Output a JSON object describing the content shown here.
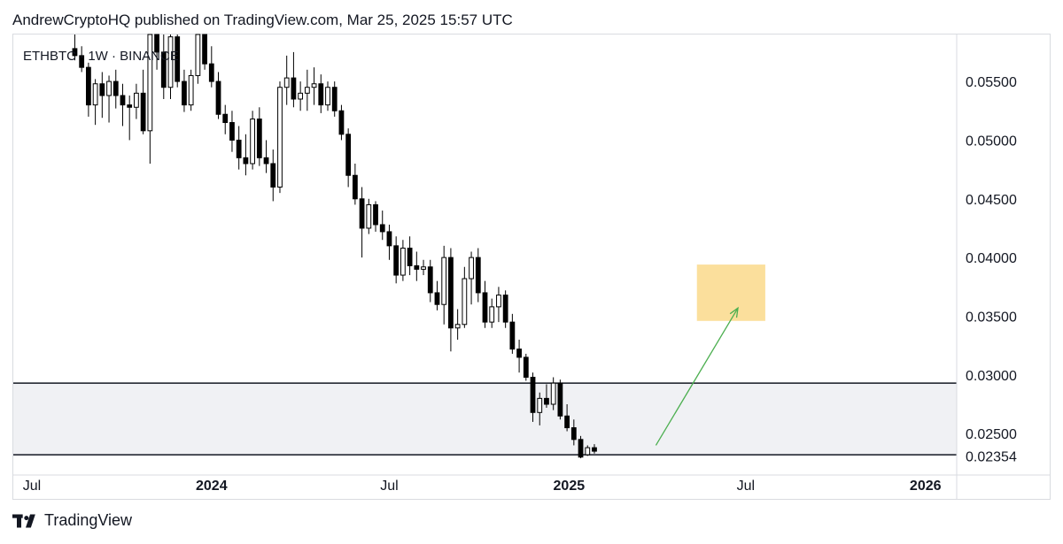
{
  "header": {
    "text": "AndrewCryptoHQ published on TradingView.com, Mar 25, 2025 15:57 UTC"
  },
  "symbol": {
    "text": "ETHBTC · 1W · BINANCE"
  },
  "footer": {
    "brand": "TradingView",
    "logo_icon": "tradingview-logo-icon"
  },
  "colors": {
    "candle_up_fill": "#ffffff",
    "candle_down_fill": "#000000",
    "candle_outline": "#000000",
    "support_zone": "#f0f1f4",
    "target_box": "#fbdf9c",
    "arrow": "#4caf50",
    "grid_border": "#d9dbe0"
  },
  "chart_data": {
    "type": "candlestick",
    "title": "",
    "interval": "1W",
    "exchange": "BINANCE",
    "symbol": "ETHBTC",
    "y_axis": {
      "side": "right",
      "ticks": [
        "0.05500",
        "0.05000",
        "0.04500",
        "0.04000",
        "0.03500",
        "0.03000",
        "0.02500"
      ],
      "last_price_label": "0.02354",
      "range": [
        0.022,
        0.059
      ]
    },
    "x_axis": {
      "ticks": [
        "Jul",
        "2024",
        "Jul",
        "2025",
        "Jul",
        "2026"
      ],
      "range": [
        "2023-06-12",
        "2026-02-02"
      ]
    },
    "support_zone": {
      "low": 0.0232,
      "high": 0.0293
    },
    "target_zone": {
      "low": 0.0346,
      "high": 0.0394,
      "start": "2025-05-12",
      "end": "2025-07-21"
    },
    "projection_arrow": {
      "from": {
        "date": "2025-03-31",
        "price": 0.024
      },
      "to": {
        "date": "2025-06-23",
        "price": 0.0357
      }
    },
    "series_start": "2023-08-14",
    "candles": [
      [
        0.0578,
        0.0592,
        0.0568,
        0.0572
      ],
      [
        0.0572,
        0.058,
        0.0558,
        0.0562
      ],
      [
        0.0562,
        0.0566,
        0.052,
        0.053
      ],
      [
        0.053,
        0.0552,
        0.0513,
        0.0548
      ],
      [
        0.0548,
        0.0558,
        0.0519,
        0.0538
      ],
      [
        0.0538,
        0.0555,
        0.0515,
        0.055
      ],
      [
        0.055,
        0.056,
        0.0527,
        0.0538
      ],
      [
        0.0538,
        0.0548,
        0.0512,
        0.053
      ],
      [
        0.053,
        0.0538,
        0.05,
        0.0528
      ],
      [
        0.0528,
        0.0548,
        0.0518,
        0.054
      ],
      [
        0.054,
        0.056,
        0.0505,
        0.0508
      ],
      [
        0.0508,
        0.0601,
        0.048,
        0.059
      ],
      [
        0.059,
        0.0605,
        0.056,
        0.0575
      ],
      [
        0.0575,
        0.0602,
        0.0535,
        0.0545
      ],
      [
        0.0545,
        0.0595,
        0.0535,
        0.0588
      ],
      [
        0.0588,
        0.0598,
        0.0545,
        0.055
      ],
      [
        0.055,
        0.056,
        0.0524,
        0.053
      ],
      [
        0.053,
        0.056,
        0.0525,
        0.0555
      ],
      [
        0.0555,
        0.0605,
        0.0548,
        0.0595
      ],
      [
        0.0595,
        0.0608,
        0.056,
        0.0565
      ],
      [
        0.0565,
        0.058,
        0.0545,
        0.055
      ],
      [
        0.055,
        0.0558,
        0.0518,
        0.0522
      ],
      [
        0.0522,
        0.053,
        0.0505,
        0.0515
      ],
      [
        0.0515,
        0.0525,
        0.049,
        0.05
      ],
      [
        0.05,
        0.0512,
        0.0475,
        0.0485
      ],
      [
        0.0485,
        0.0505,
        0.047,
        0.048
      ],
      [
        0.048,
        0.0525,
        0.0475,
        0.0518
      ],
      [
        0.0518,
        0.0528,
        0.0478,
        0.0485
      ],
      [
        0.0485,
        0.05,
        0.0472,
        0.048
      ],
      [
        0.048,
        0.0492,
        0.0448,
        0.046
      ],
      [
        0.046,
        0.055,
        0.0455,
        0.0545
      ],
      [
        0.0545,
        0.0572,
        0.053,
        0.0553
      ],
      [
        0.0553,
        0.0575,
        0.0528,
        0.0535
      ],
      [
        0.0535,
        0.055,
        0.0525,
        0.054
      ],
      [
        0.054,
        0.056,
        0.0525,
        0.0545
      ],
      [
        0.0545,
        0.0562,
        0.053,
        0.0548
      ],
      [
        0.0548,
        0.0556,
        0.0523,
        0.053
      ],
      [
        0.053,
        0.055,
        0.0525,
        0.0545
      ],
      [
        0.0545,
        0.055,
        0.052,
        0.0525
      ],
      [
        0.0525,
        0.053,
        0.05,
        0.0505
      ],
      [
        0.0505,
        0.051,
        0.046,
        0.047
      ],
      [
        0.047,
        0.048,
        0.0445,
        0.045
      ],
      [
        0.045,
        0.046,
        0.04,
        0.0425
      ],
      [
        0.0425,
        0.045,
        0.042,
        0.0445
      ],
      [
        0.0445,
        0.0448,
        0.0422,
        0.0428
      ],
      [
        0.0428,
        0.044,
        0.0415,
        0.0422
      ],
      [
        0.0422,
        0.0428,
        0.0398,
        0.041
      ],
      [
        0.041,
        0.0418,
        0.0378,
        0.0385
      ],
      [
        0.0385,
        0.0415,
        0.038,
        0.0408
      ],
      [
        0.0408,
        0.0418,
        0.0385,
        0.0393
      ],
      [
        0.0393,
        0.0405,
        0.038,
        0.039
      ],
      [
        0.039,
        0.0398,
        0.0385,
        0.0392
      ],
      [
        0.0392,
        0.0398,
        0.0362,
        0.037
      ],
      [
        0.037,
        0.038,
        0.0355,
        0.036
      ],
      [
        0.036,
        0.041,
        0.0343,
        0.04
      ],
      [
        0.04,
        0.0408,
        0.032,
        0.034
      ],
      [
        0.034,
        0.0356,
        0.033,
        0.0343
      ],
      [
        0.0343,
        0.0392,
        0.034,
        0.0382
      ],
      [
        0.0382,
        0.0405,
        0.036,
        0.04
      ],
      [
        0.04,
        0.0408,
        0.0362,
        0.037
      ],
      [
        0.037,
        0.038,
        0.034,
        0.0345
      ],
      [
        0.0345,
        0.0365,
        0.034,
        0.0358
      ],
      [
        0.0358,
        0.0375,
        0.0345,
        0.0368
      ],
      [
        0.0368,
        0.0372,
        0.034,
        0.0345
      ],
      [
        0.0345,
        0.0352,
        0.0318,
        0.0322
      ],
      [
        0.0322,
        0.033,
        0.0302,
        0.0315
      ],
      [
        0.0315,
        0.0318,
        0.0295,
        0.0298
      ],
      [
        0.0298,
        0.0302,
        0.026,
        0.0268
      ],
      [
        0.0268,
        0.0285,
        0.0257,
        0.028
      ],
      [
        0.028,
        0.0292,
        0.0272,
        0.0275
      ],
      [
        0.0275,
        0.0298,
        0.027,
        0.0293
      ],
      [
        0.0293,
        0.0296,
        0.0262,
        0.0265
      ],
      [
        0.0265,
        0.0275,
        0.0252,
        0.0255
      ],
      [
        0.0255,
        0.0262,
        0.024,
        0.0245
      ],
      [
        0.0245,
        0.0248,
        0.0229,
        0.023
      ],
      [
        0.0232,
        0.024,
        0.0231,
        0.0238
      ],
      [
        0.0238,
        0.0241,
        0.0233,
        0.0235
      ]
    ]
  }
}
